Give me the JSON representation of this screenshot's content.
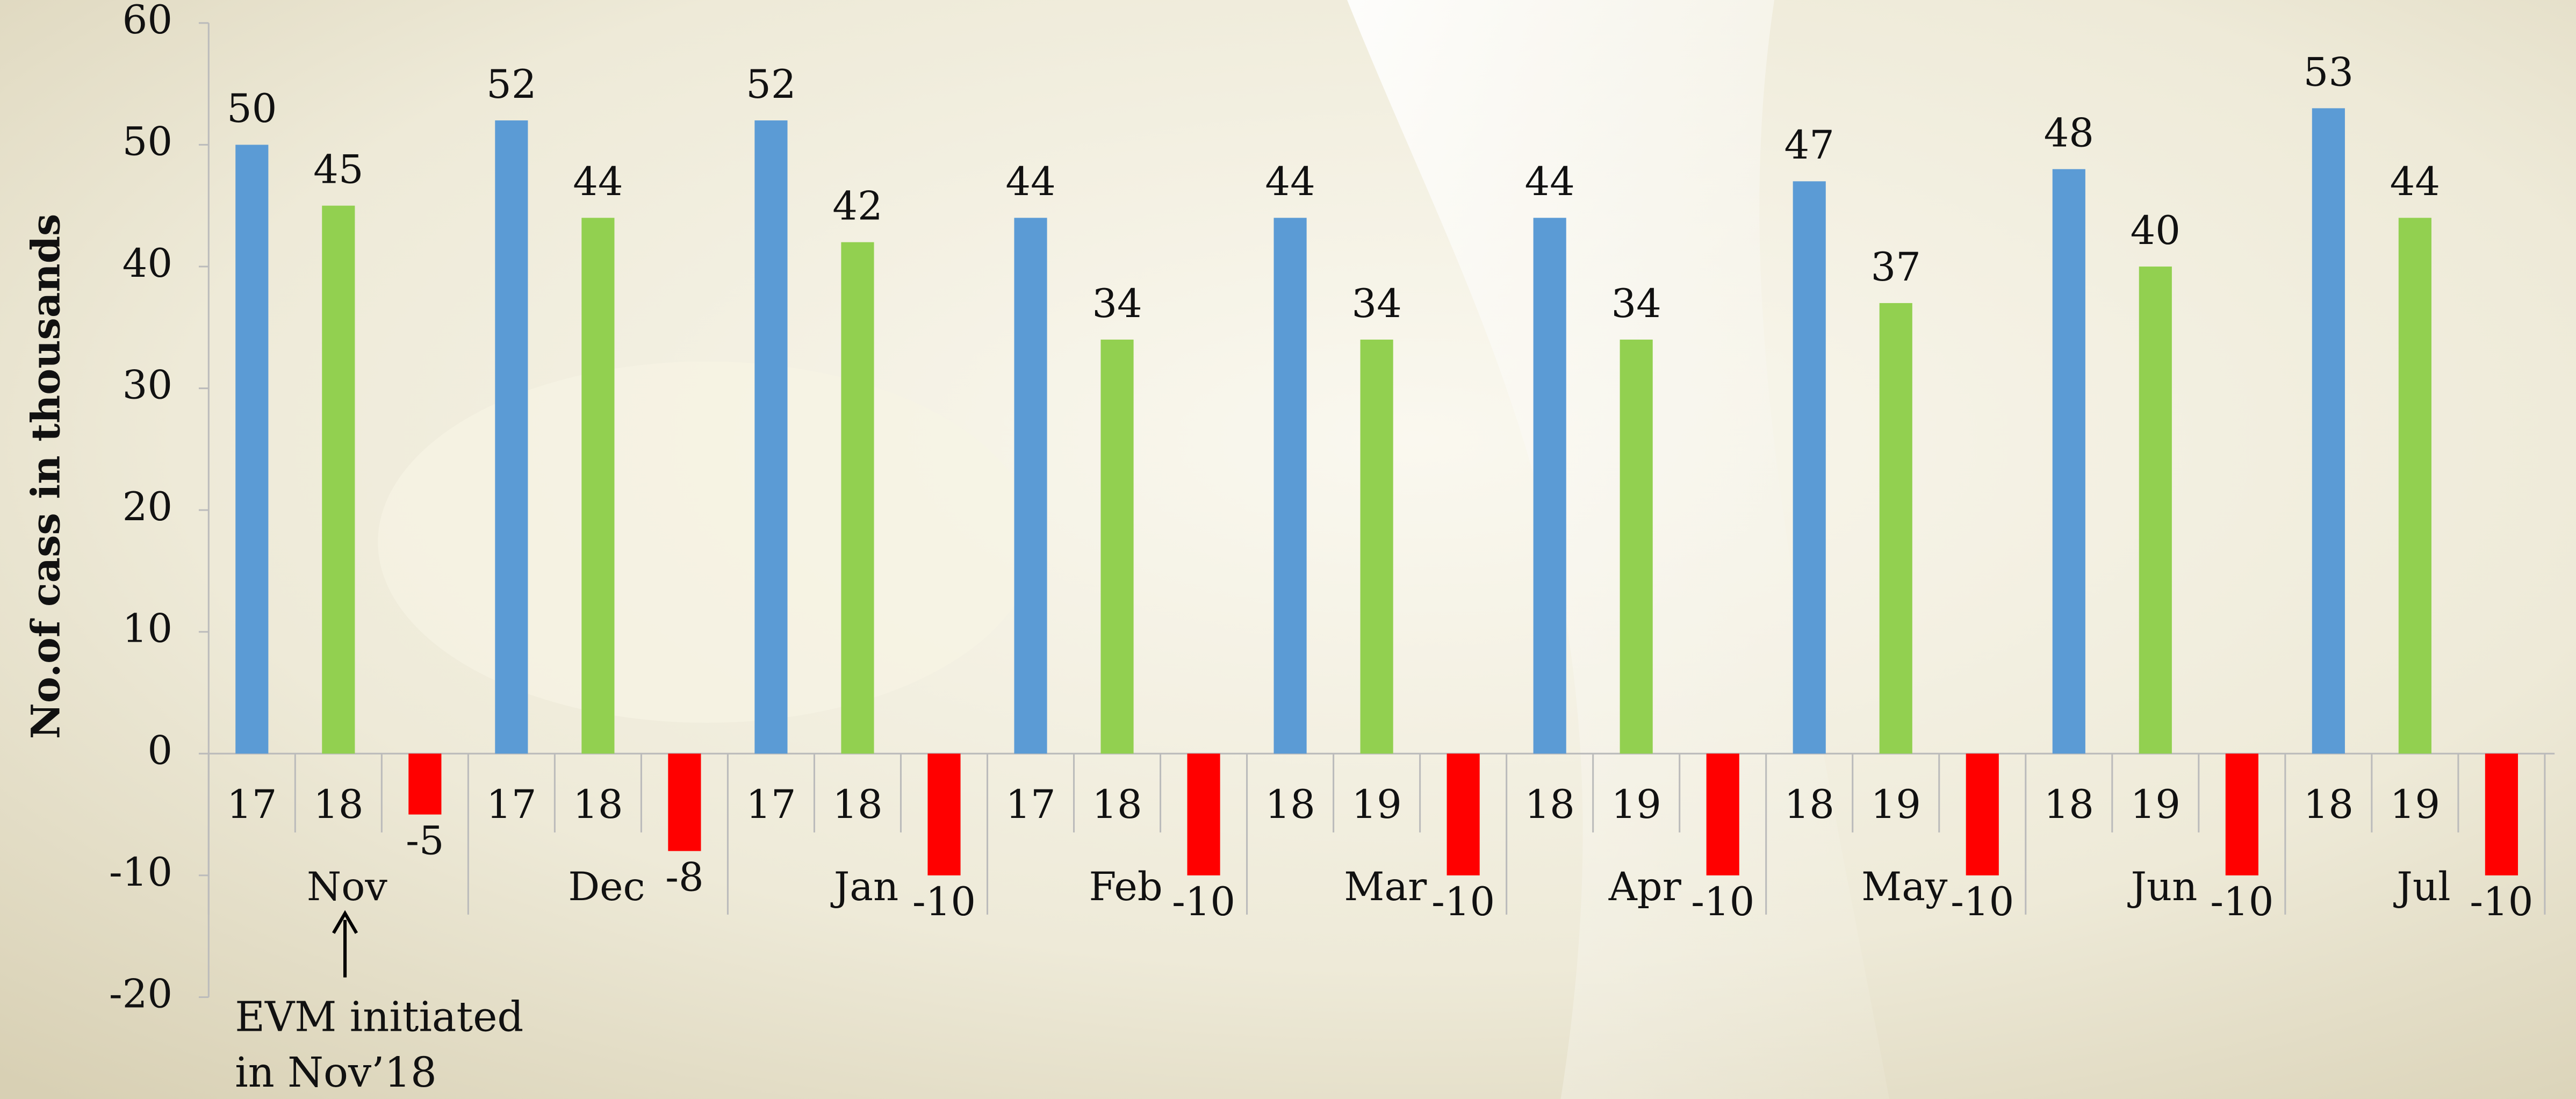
{
  "chart_data": {
    "type": "bar",
    "y_label": "No.of cass in thousands",
    "categories": [
      "Nov",
      "Dec",
      "Jan",
      "Feb",
      "Mar",
      "Apr",
      "May",
      "Jun",
      "Jul"
    ],
    "x_sublabels": [
      [
        "17",
        "18"
      ],
      [
        "17",
        "18"
      ],
      [
        "17",
        "18"
      ],
      [
        "17",
        "18"
      ],
      [
        "18",
        "19"
      ],
      [
        "18",
        "19"
      ],
      [
        "18",
        "19"
      ],
      [
        "18",
        "19"
      ],
      [
        "18",
        "19"
      ]
    ],
    "series": [
      {
        "color": "#5b9bd5",
        "values": [
          50,
          52,
          52,
          44,
          44,
          44,
          47,
          48,
          53
        ]
      },
      {
        "color": "#92d050",
        "values": [
          45,
          44,
          42,
          34,
          34,
          34,
          37,
          40,
          44
        ]
      },
      {
        "color": "#ff0000",
        "values": [
          -5,
          -8,
          -10,
          -10,
          -10,
          -10,
          -10,
          -10,
          -10
        ]
      }
    ],
    "ylim": [
      -20,
      60
    ],
    "yticks": [
      -20,
      -10,
      0,
      10,
      20,
      30,
      40,
      50,
      60
    ],
    "annotation": [
      "EVM initiated",
      "in Nov’18"
    ]
  }
}
